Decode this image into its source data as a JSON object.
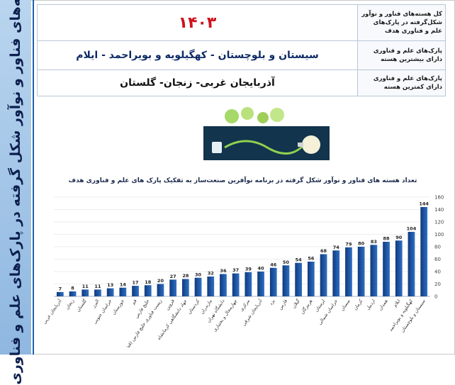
{
  "side_title": "هسته‌های فناور و نوآور شکل گرفته در پارک‌های علم و فناوری",
  "table": {
    "total_label": "کل هسته‌های فناور و نوآور شکل‌گرفته در پارک‌های علم و فناوری هدف",
    "total_value": "۱۴۰۳",
    "highest_label": "پارک‌های علم و فناوری دارای بیشترین هسته",
    "highest_value": "سیستان و بلوچستان - کهگیلویه و بویراحمد - ایلام",
    "lowest_label": "پارک‌های علم و فناوری دارای کمترین هسته",
    "lowest_value": "آذربایجان غربی- زنجان- گلستان"
  },
  "colors": {
    "accent": "#d0121b",
    "bar_dark": "#0f3a7d",
    "bar_light": "#2f6fc4",
    "side": "#8fb7e0"
  },
  "chart_data": {
    "type": "bar",
    "title": "تعداد هسته های فناور و نوآور شکل گرفته در برنامه نوآفرین صنعت‌ساز به تفکیک پارک های علم و فناوری هدف",
    "categories": [
      "آذربایجان غربی",
      "زنجان",
      "گلستان",
      "البرز",
      "خراسان جنوبی",
      "خوزستان",
      "قم",
      "خلیج فارس",
      "زیست فناوری خلیج فارس (قشم)",
      "قزوین",
      "جهاد دانشگاهی کرمانشاه",
      "کردستان",
      "مازندران",
      "دانشگاه تهران",
      "چهارمحال و بختیاری",
      "مرکزی",
      "آذربایجان شرقی",
      "یزد",
      "فارس",
      "گیلان",
      "هرمزگان",
      "لرستان",
      "خراسان شمالی",
      "سمنان",
      "کرمان",
      "اردبیل",
      "همدان",
      "ایلام",
      "کهگیلویه و بویراحمد",
      "سیستان و بلوچستان"
    ],
    "values": [
      7,
      8,
      11,
      11,
      13,
      14,
      17,
      18,
      20,
      27,
      28,
      30,
      32,
      36,
      37,
      39,
      40,
      46,
      50,
      54,
      56,
      68,
      74,
      79,
      80,
      83,
      88,
      90,
      104,
      144
    ],
    "ylim": [
      0,
      160
    ],
    "yticks": [
      0,
      20,
      40,
      60,
      80,
      100,
      120,
      140,
      160
    ],
    "grid": true
  }
}
